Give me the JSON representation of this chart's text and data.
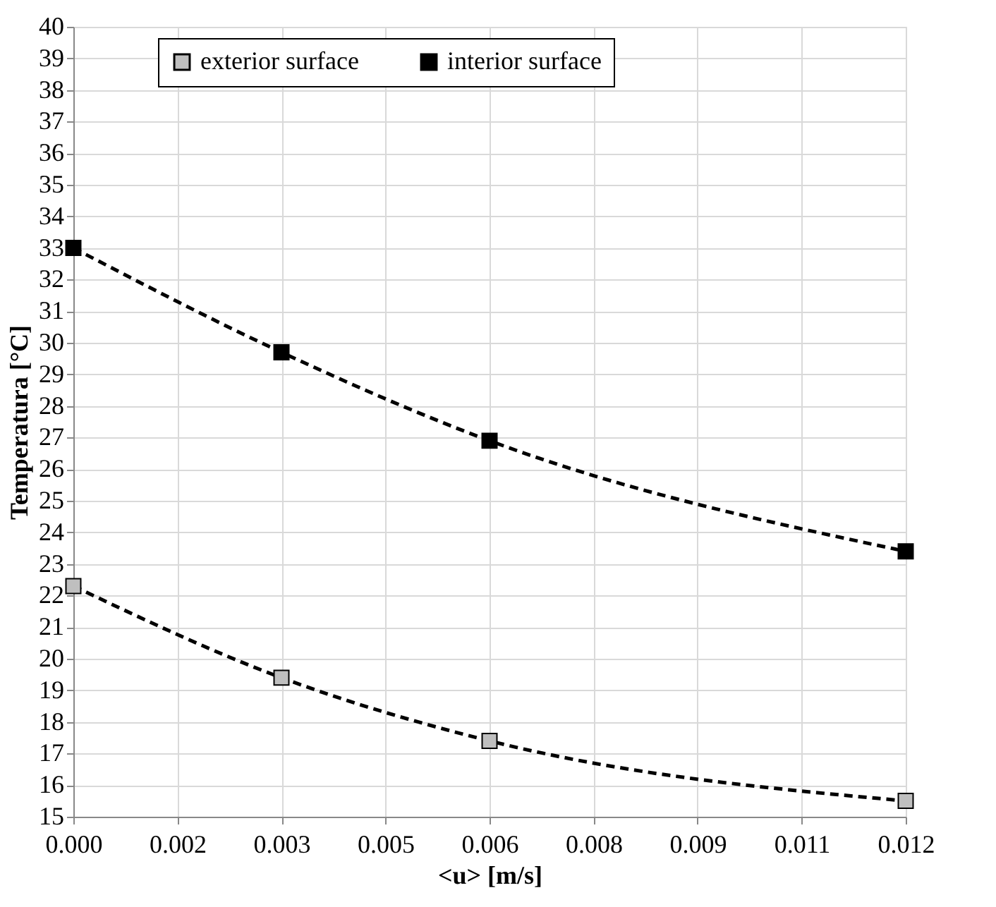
{
  "chart_data": {
    "type": "line",
    "xlabel": "<u> [m/s]",
    "ylabel": "Temperatura   [°C]",
    "xlim": [
      0,
      0.012
    ],
    "xticks": [
      {
        "value": 0,
        "label": "0.000"
      },
      {
        "value": 0.0015,
        "label": "0.002"
      },
      0.003,
      {
        "value": 0.0045,
        "label": "0.005"
      },
      0.006,
      {
        "value": 0.0075,
        "label": "0.008"
      },
      0.009,
      {
        "value": 0.0105,
        "label": "0.011"
      },
      0.012
    ],
    "ylim": [
      15,
      40
    ],
    "yticks": [
      15,
      16,
      17,
      18,
      19,
      20,
      21,
      22,
      23,
      24,
      25,
      26,
      27,
      28,
      29,
      30,
      31,
      32,
      33,
      34,
      35,
      36,
      37,
      38,
      39,
      40
    ],
    "x": [
      0,
      0.003,
      0.006,
      0.012
    ],
    "series": [
      {
        "name": "exterior surface",
        "color": "#bfbfbf",
        "values": [
          22.3,
          19.4,
          17.4,
          15.5
        ]
      },
      {
        "name": "interior surface",
        "color": "#000000",
        "values": [
          33.0,
          29.7,
          26.9,
          23.4
        ]
      }
    ],
    "grid": true,
    "legend": "top",
    "marker": "square",
    "line_style": "dashed"
  }
}
